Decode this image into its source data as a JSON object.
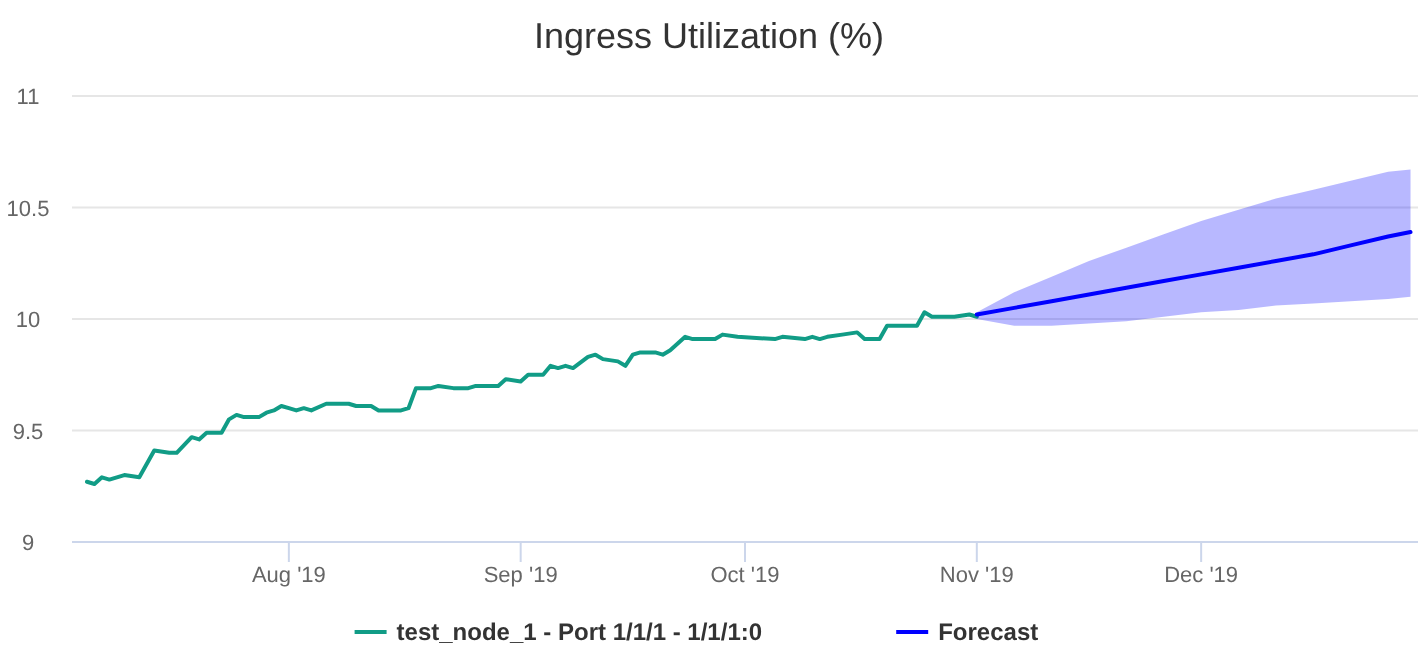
{
  "chart_data": {
    "type": "line",
    "title": "Ingress Utilization (%)",
    "xlim": [
      "2019-07-03",
      "2019-12-30"
    ],
    "xticks": [
      {
        "value": "2019-08-01",
        "label": "Aug '19"
      },
      {
        "value": "2019-09-01",
        "label": "Sep '19"
      },
      {
        "value": "2019-10-01",
        "label": "Oct '19"
      },
      {
        "value": "2019-11-01",
        "label": "Nov '19"
      },
      {
        "value": "2019-12-01",
        "label": "Dec '19"
      }
    ],
    "ylim": [
      9,
      11
    ],
    "yticks": [
      9,
      9.5,
      10,
      10.5,
      11
    ],
    "grid": "y",
    "legend": "bottom",
    "marker": "none",
    "line_style": "solid",
    "series": [
      {
        "name": "test_node_1 - Port 1/1/1 - 1/1/1:0",
        "color": "#119c86",
        "x": [
          "2019-07-05",
          "2019-07-06",
          "2019-07-07",
          "2019-07-08",
          "2019-07-10",
          "2019-07-12",
          "2019-07-14",
          "2019-07-16",
          "2019-07-17",
          "2019-07-19",
          "2019-07-20",
          "2019-07-21",
          "2019-07-23",
          "2019-07-24",
          "2019-07-25",
          "2019-07-26",
          "2019-07-28",
          "2019-07-29",
          "2019-07-30",
          "2019-07-31",
          "2019-08-01",
          "2019-08-02",
          "2019-08-03",
          "2019-08-04",
          "2019-08-06",
          "2019-08-09",
          "2019-08-10",
          "2019-08-12",
          "2019-08-13",
          "2019-08-16",
          "2019-08-17",
          "2019-08-18",
          "2019-08-20",
          "2019-08-21",
          "2019-08-23",
          "2019-08-25",
          "2019-08-26",
          "2019-08-29",
          "2019-08-30",
          "2019-09-01",
          "2019-09-02",
          "2019-09-04",
          "2019-09-05",
          "2019-09-06",
          "2019-09-07",
          "2019-09-08",
          "2019-09-10",
          "2019-09-11",
          "2019-09-12",
          "2019-09-14",
          "2019-09-15",
          "2019-09-16",
          "2019-09-17",
          "2019-09-19",
          "2019-09-20",
          "2019-09-21",
          "2019-09-23",
          "2019-09-24",
          "2019-09-27",
          "2019-09-28",
          "2019-09-30",
          "2019-10-05",
          "2019-10-06",
          "2019-10-09",
          "2019-10-10",
          "2019-10-11",
          "2019-10-12",
          "2019-10-14",
          "2019-10-16",
          "2019-10-17",
          "2019-10-19",
          "2019-10-20",
          "2019-10-24",
          "2019-10-25",
          "2019-10-26",
          "2019-10-29",
          "2019-10-31",
          "2019-11-01"
        ],
        "values": [
          9.27,
          9.26,
          9.29,
          9.28,
          9.3,
          9.29,
          9.41,
          9.4,
          9.4,
          9.47,
          9.46,
          9.49,
          9.49,
          9.55,
          9.57,
          9.56,
          9.56,
          9.58,
          9.59,
          9.61,
          9.6,
          9.59,
          9.6,
          9.59,
          9.62,
          9.62,
          9.61,
          9.61,
          9.59,
          9.59,
          9.6,
          9.69,
          9.69,
          9.7,
          9.69,
          9.69,
          9.7,
          9.7,
          9.73,
          9.72,
          9.75,
          9.75,
          9.79,
          9.78,
          9.79,
          9.78,
          9.83,
          9.84,
          9.82,
          9.81,
          9.79,
          9.84,
          9.85,
          9.85,
          9.84,
          9.86,
          9.92,
          9.91,
          9.91,
          9.93,
          9.92,
          9.91,
          9.92,
          9.91,
          9.92,
          9.91,
          9.92,
          9.93,
          9.94,
          9.91,
          9.91,
          9.97,
          9.97,
          10.03,
          10.01,
          10.01,
          10.02,
          10.01
        ]
      },
      {
        "name": "Forecast",
        "color": "#0000ff",
        "x": [
          "2019-11-01",
          "2019-11-06",
          "2019-11-11",
          "2019-11-16",
          "2019-11-21",
          "2019-11-26",
          "2019-12-01",
          "2019-12-06",
          "2019-12-11",
          "2019-12-16",
          "2019-12-21",
          "2019-12-26",
          "2019-12-29"
        ],
        "values": [
          10.02,
          10.05,
          10.08,
          10.11,
          10.14,
          10.17,
          10.2,
          10.23,
          10.26,
          10.29,
          10.33,
          10.37,
          10.39
        ],
        "lower": [
          10.0,
          9.97,
          9.97,
          9.98,
          9.99,
          10.01,
          10.03,
          10.04,
          10.06,
          10.07,
          10.08,
          10.09,
          10.1
        ],
        "upper": [
          10.03,
          10.12,
          10.19,
          10.26,
          10.32,
          10.38,
          10.44,
          10.49,
          10.54,
          10.58,
          10.62,
          10.66,
          10.67
        ]
      }
    ]
  }
}
